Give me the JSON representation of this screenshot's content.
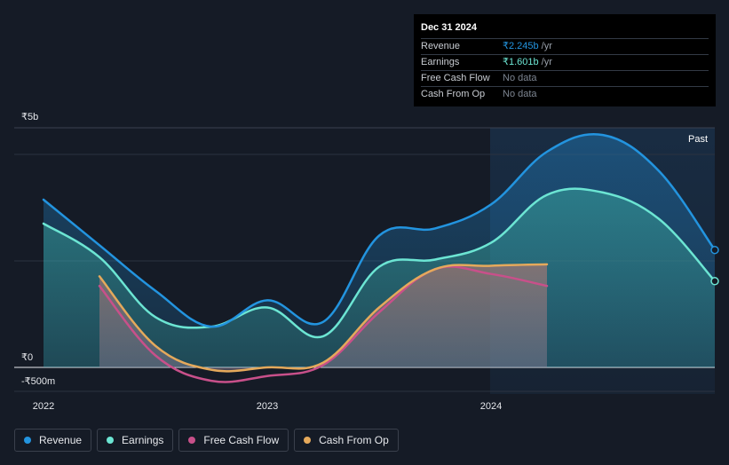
{
  "tooltip": {
    "date": "Dec 31 2024",
    "rows": [
      {
        "label": "Revenue",
        "value": "₹2.245b",
        "unit": "/yr",
        "color": "#2394df"
      },
      {
        "label": "Earnings",
        "value": "₹1.601b",
        "unit": "/yr",
        "color": "#6ce5d3"
      },
      {
        "label": "Free Cash Flow",
        "value": "No data",
        "unit": "",
        "color": ""
      },
      {
        "label": "Cash From Op",
        "value": "No data",
        "unit": "",
        "color": ""
      }
    ]
  },
  "legend": [
    {
      "label": "Revenue",
      "color": "#2394df"
    },
    {
      "label": "Earnings",
      "color": "#6ce5d3"
    },
    {
      "label": "Free Cash Flow",
      "color": "#c8508a"
    },
    {
      "label": "Cash From Op",
      "color": "#e5a95b"
    }
  ],
  "chart_data": {
    "type": "area",
    "title": "",
    "xlabel": "",
    "ylabel": "",
    "y_tick_labels": [
      "₹5b",
      "₹0",
      "-₹500m"
    ],
    "x_tick_labels": [
      "2022",
      "2023",
      "2024"
    ],
    "past_label": "Past",
    "ylim": [
      -500000000,
      5000000000
    ],
    "xlim": [
      2022.0,
      2025.0
    ],
    "grid": true,
    "series": [
      {
        "name": "Revenue",
        "color": "#2394df",
        "points": [
          [
            2022.0,
            3500000000.0
          ],
          [
            2022.25,
            2550000000.0
          ],
          [
            2022.5,
            1600000000.0
          ],
          [
            2022.75,
            850000000.0
          ],
          [
            2023.0,
            1400000000.0
          ],
          [
            2023.25,
            950000000.0
          ],
          [
            2023.5,
            2750000000.0
          ],
          [
            2023.75,
            2900000000.0
          ],
          [
            2024.0,
            3400000000.0
          ],
          [
            2024.25,
            4500000000.0
          ],
          [
            2024.5,
            4850000000.0
          ],
          [
            2024.75,
            4100000000.0
          ],
          [
            2025.0,
            2450000000.0
          ]
        ]
      },
      {
        "name": "Earnings",
        "color": "#6ce5d3",
        "points": [
          [
            2022.0,
            3000000000.0
          ],
          [
            2022.25,
            2300000000.0
          ],
          [
            2022.5,
            1050000000.0
          ],
          [
            2022.75,
            850000000.0
          ],
          [
            2023.0,
            1250000000.0
          ],
          [
            2023.25,
            650000000.0
          ],
          [
            2023.5,
            2100000000.0
          ],
          [
            2023.75,
            2250000000.0
          ],
          [
            2024.0,
            2600000000.0
          ],
          [
            2024.25,
            3600000000.0
          ],
          [
            2024.5,
            3650000000.0
          ],
          [
            2024.75,
            3100000000.0
          ],
          [
            2025.0,
            1800000000.0
          ]
        ]
      },
      {
        "name": "Free Cash Flow",
        "color": "#c8508a",
        "points": [
          [
            2022.25,
            1700000000.0
          ],
          [
            2022.5,
            250000000.0
          ],
          [
            2022.75,
            -280000000.0
          ],
          [
            2023.0,
            -180000000.0
          ],
          [
            2023.25,
            50000000.0
          ],
          [
            2023.5,
            1150000000.0
          ],
          [
            2023.75,
            2050000000.0
          ],
          [
            2024.0,
            1950000000.0
          ],
          [
            2024.25,
            1700000000.0
          ]
        ]
      },
      {
        "name": "Cash From Op",
        "color": "#e5a95b",
        "points": [
          [
            2022.25,
            1900000000.0
          ],
          [
            2022.5,
            450000000.0
          ],
          [
            2022.75,
            -50000000.0
          ],
          [
            2023.0,
            0.0
          ],
          [
            2023.25,
            100000000.0
          ],
          [
            2023.5,
            1250000000.0
          ],
          [
            2023.75,
            2050000000.0
          ],
          [
            2024.0,
            2120000000.0
          ],
          [
            2024.25,
            2150000000.0
          ]
        ]
      }
    ]
  }
}
